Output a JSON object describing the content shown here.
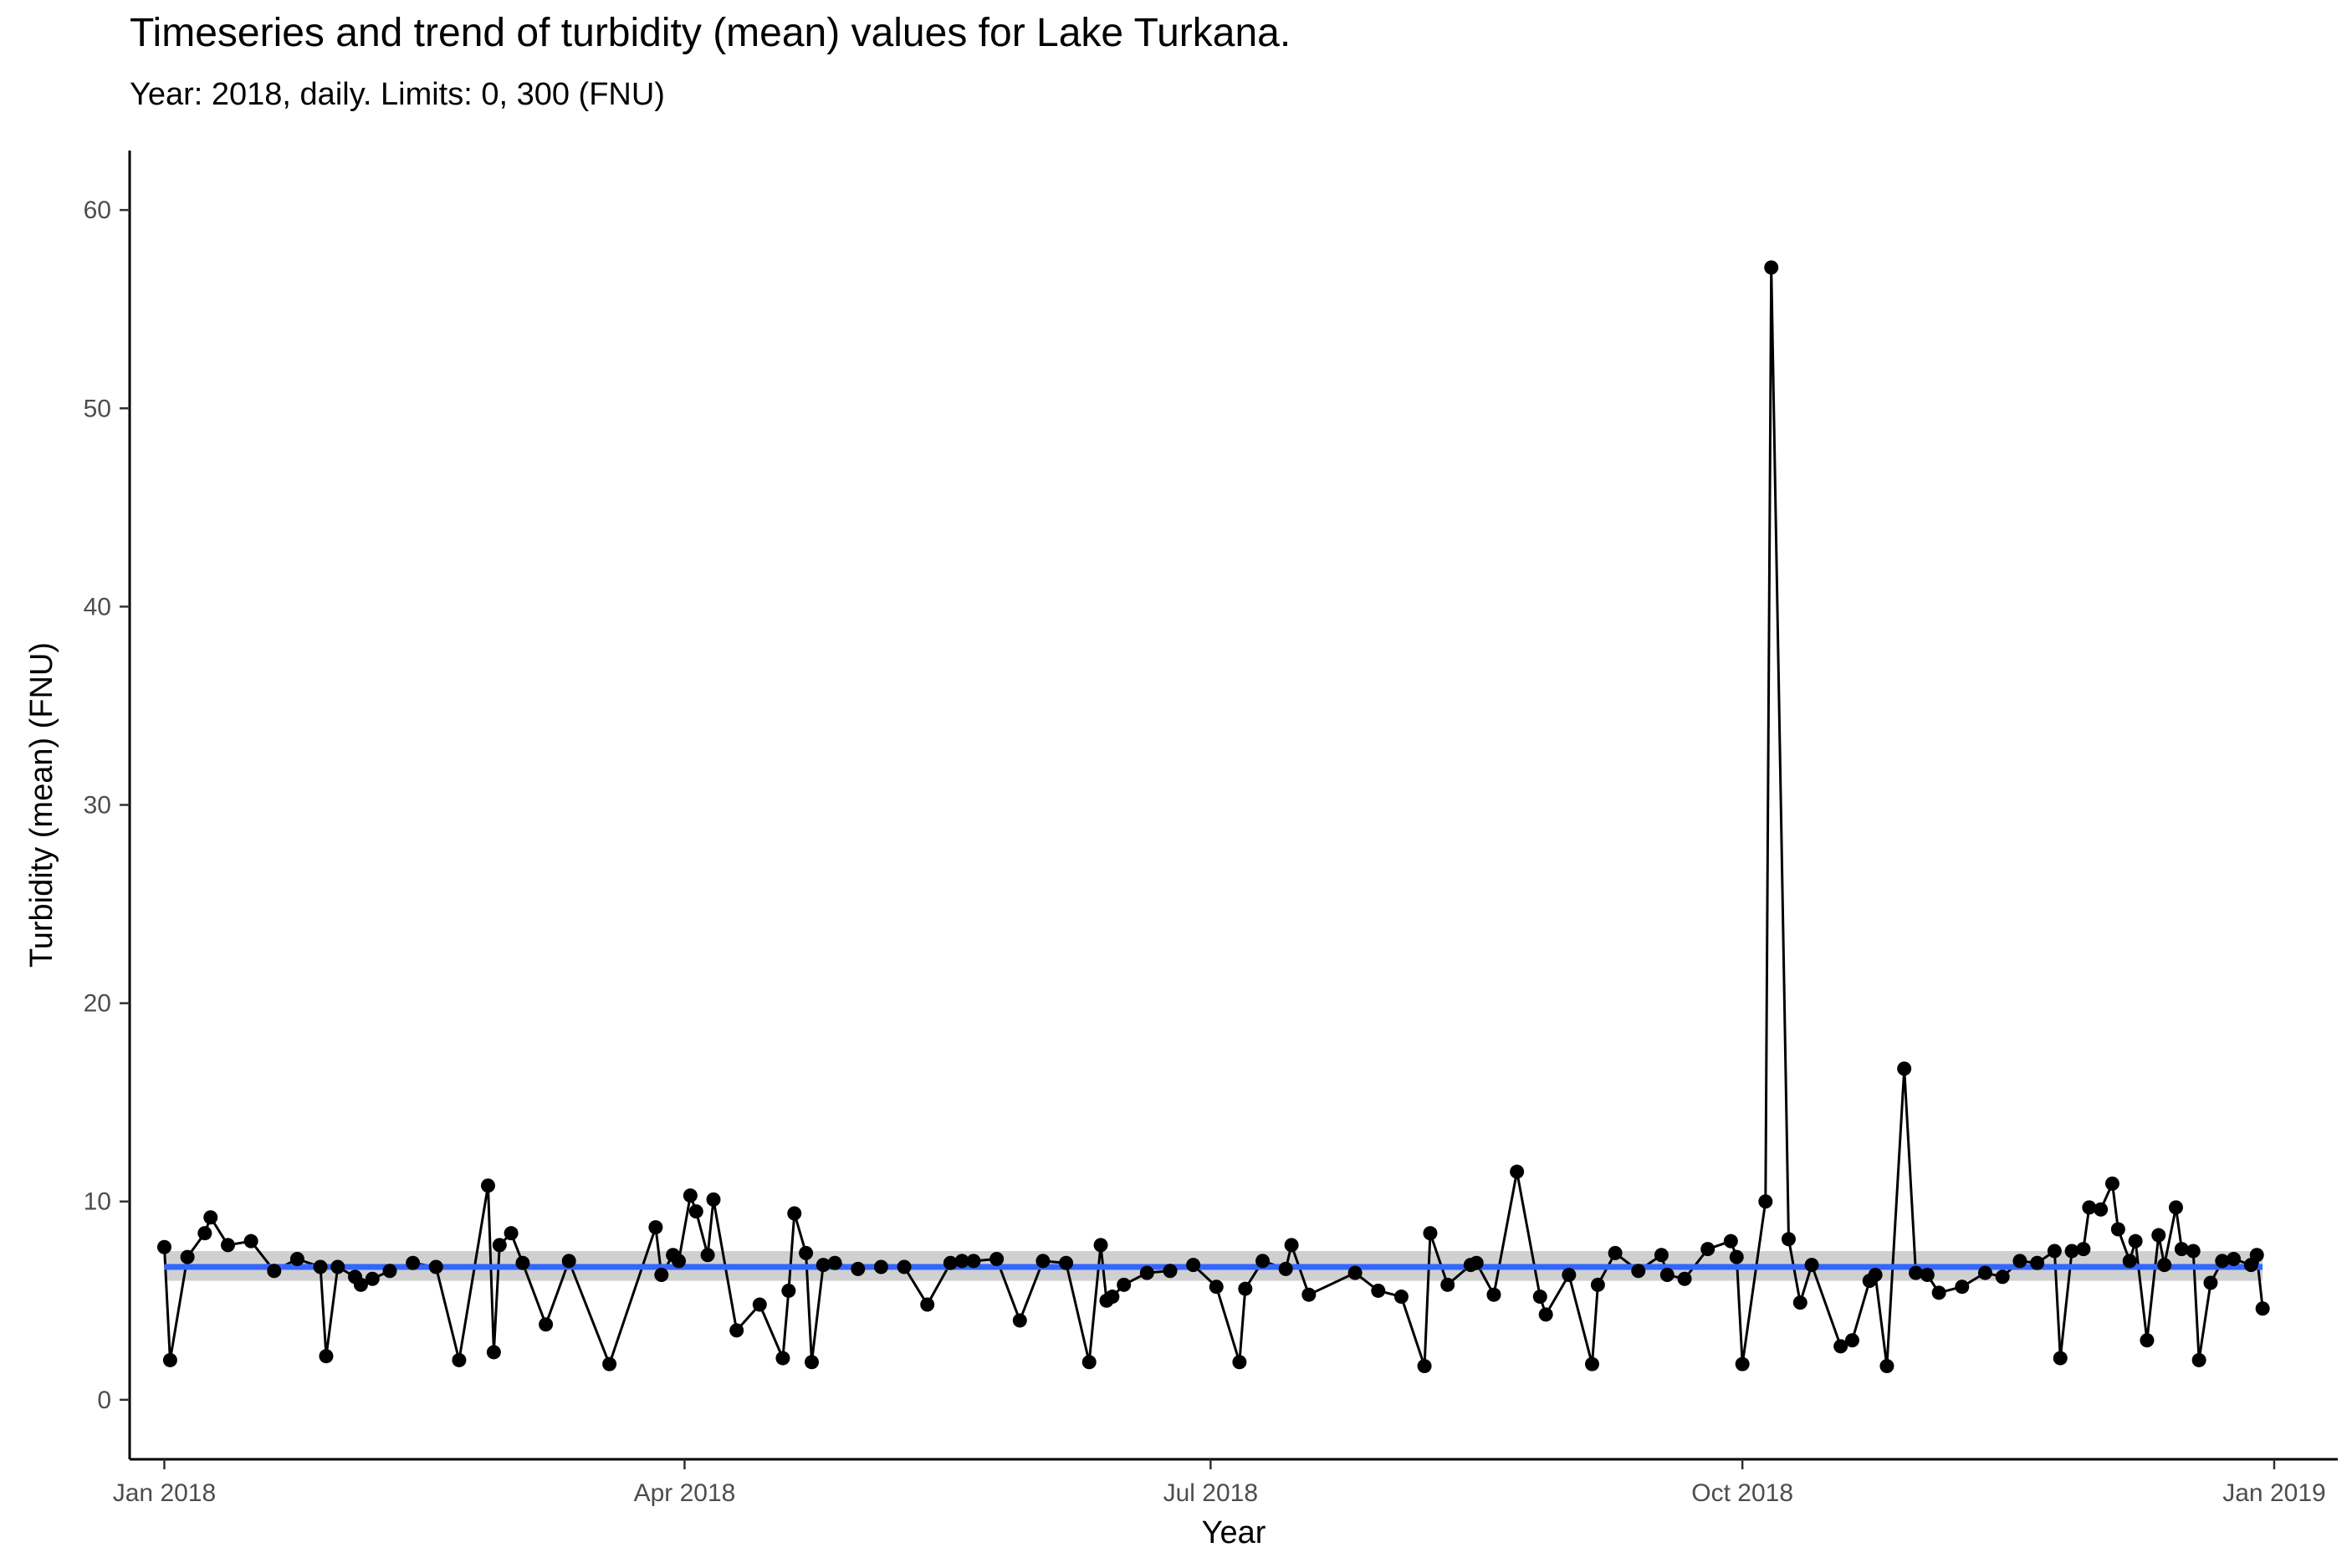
{
  "chart_data": {
    "type": "line",
    "title": "Timeseries and trend of turbidity (mean) values for Lake Turkana.",
    "subtitle": "Year: 2018, daily. Limits: 0, 300 (FNU)",
    "xlabel": "Year",
    "ylabel": "Turbidity (mean) (FNU)",
    "xlim": [
      "2017-12-26",
      "2019-01-12"
    ],
    "ylim": [
      -3,
      63
    ],
    "x_ticks": [
      "2018-01-01",
      "2018-04-01",
      "2018-07-01",
      "2018-10-01",
      "2019-01-01"
    ],
    "x_tick_labels": [
      "Jan 2018",
      "Apr 2018",
      "Jul 2018",
      "Oct 2018",
      "Jan 2019"
    ],
    "y_ticks": [
      0,
      10,
      20,
      30,
      40,
      50,
      60
    ],
    "y_tick_labels": [
      "0",
      "10",
      "20",
      "30",
      "40",
      "50",
      "60"
    ],
    "grid": false,
    "colors": {
      "points": "#000000",
      "line": "#000000",
      "trend": "#3366FF",
      "band": "#d0d0d0"
    },
    "series": [
      {
        "x": [
          "2018-01-01",
          "2018-01-02",
          "2018-01-05",
          "2018-01-08",
          "2018-01-09",
          "2018-01-12",
          "2018-01-16",
          "2018-01-20",
          "2018-01-24",
          "2018-01-28",
          "2018-01-29",
          "2018-01-31",
          "2018-02-03",
          "2018-02-04",
          "2018-02-06",
          "2018-02-09",
          "2018-02-13",
          "2018-02-17",
          "2018-02-21",
          "2018-02-26",
          "2018-02-27",
          "2018-02-28",
          "2018-03-02",
          "2018-03-04",
          "2018-03-08",
          "2018-03-12",
          "2018-03-19",
          "2018-03-27",
          "2018-03-28",
          "2018-03-30",
          "2018-03-31",
          "2018-04-02",
          "2018-04-03",
          "2018-04-05",
          "2018-04-06",
          "2018-04-10",
          "2018-04-14",
          "2018-04-18",
          "2018-04-19",
          "2018-04-20",
          "2018-04-22",
          "2018-04-23",
          "2018-04-25",
          "2018-04-27",
          "2018-05-01",
          "2018-05-05",
          "2018-05-09",
          "2018-05-13",
          "2018-05-17",
          "2018-05-19",
          "2018-05-21",
          "2018-05-25",
          "2018-05-29",
          "2018-06-02",
          "2018-06-06",
          "2018-06-10",
          "2018-06-12",
          "2018-06-13",
          "2018-06-14",
          "2018-06-16",
          "2018-06-20",
          "2018-06-24",
          "2018-06-28",
          "2018-07-02",
          "2018-07-06",
          "2018-07-07",
          "2018-07-10",
          "2018-07-14",
          "2018-07-15",
          "2018-07-18",
          "2018-07-26",
          "2018-07-30",
          "2018-08-03",
          "2018-08-07",
          "2018-08-08",
          "2018-08-11",
          "2018-08-15",
          "2018-08-16",
          "2018-08-19",
          "2018-08-23",
          "2018-08-27",
          "2018-08-28",
          "2018-09-01",
          "2018-09-05",
          "2018-09-06",
          "2018-09-09",
          "2018-09-13",
          "2018-09-17",
          "2018-09-18",
          "2018-09-21",
          "2018-09-25",
          "2018-09-29",
          "2018-09-30",
          "2018-10-01",
          "2018-10-05",
          "2018-10-06",
          "2018-10-09",
          "2018-10-11",
          "2018-10-13",
          "2018-10-18",
          "2018-10-20",
          "2018-10-23",
          "2018-10-24",
          "2018-10-26",
          "2018-10-29",
          "2018-10-31",
          "2018-11-02",
          "2018-11-04",
          "2018-11-08",
          "2018-11-12",
          "2018-11-15",
          "2018-11-18",
          "2018-11-21",
          "2018-11-24",
          "2018-11-25",
          "2018-11-27",
          "2018-11-29",
          "2018-11-30",
          "2018-12-02",
          "2018-12-04",
          "2018-12-05",
          "2018-12-07",
          "2018-12-08",
          "2018-12-10",
          "2018-12-12",
          "2018-12-13",
          "2018-12-15",
          "2018-12-16",
          "2018-12-18",
          "2018-12-19",
          "2018-12-21",
          "2018-12-23",
          "2018-12-25",
          "2018-12-28",
          "2018-12-29",
          "2018-12-30"
        ],
        "y": [
          7.7,
          2.0,
          7.2,
          8.4,
          9.2,
          7.8,
          8.0,
          6.5,
          7.1,
          6.7,
          2.2,
          6.7,
          6.2,
          5.8,
          6.1,
          6.5,
          6.9,
          6.7,
          2.0,
          10.8,
          2.4,
          7.8,
          8.4,
          6.9,
          3.8,
          7.0,
          1.8,
          8.7,
          6.3,
          7.3,
          7.0,
          10.3,
          9.5,
          7.3,
          10.1,
          3.5,
          4.8,
          2.1,
          5.5,
          9.4,
          7.4,
          1.9,
          6.8,
          6.9,
          6.6,
          6.7,
          6.7,
          4.8,
          6.9,
          7.0,
          7.0,
          7.1,
          4.0,
          7.0,
          6.9,
          1.9,
          7.8,
          5.0,
          5.2,
          5.8,
          6.4,
          6.5,
          6.8,
          5.7,
          1.9,
          5.6,
          7.0,
          6.6,
          7.8,
          5.3,
          6.4,
          5.5,
          5.2,
          1.7,
          8.4,
          5.8,
          6.8,
          6.9,
          5.3,
          11.5,
          5.2,
          4.3,
          6.3,
          1.8,
          5.8,
          7.4,
          6.5,
          7.3,
          6.3,
          6.1,
          7.6,
          8.0,
          7.2,
          1.8,
          10.0,
          57.1,
          8.1,
          4.9,
          6.8,
          2.7,
          3.0,
          6.0,
          6.3,
          1.7,
          16.7,
          6.4,
          6.3,
          5.4,
          5.7,
          6.4,
          6.2,
          7.0,
          6.9,
          7.5,
          2.1,
          7.5,
          7.6,
          9.7,
          9.6,
          10.9,
          8.6,
          7.0,
          8.0,
          3.0,
          8.3,
          6.8,
          9.7,
          7.6,
          7.5,
          2.0,
          5.9,
          7.0,
          7.1,
          6.8,
          7.3,
          4.6
        ]
      }
    ],
    "trend": {
      "label": "",
      "value": 6.7,
      "ci_low": 6.0,
      "ci_high": 7.5
    }
  }
}
